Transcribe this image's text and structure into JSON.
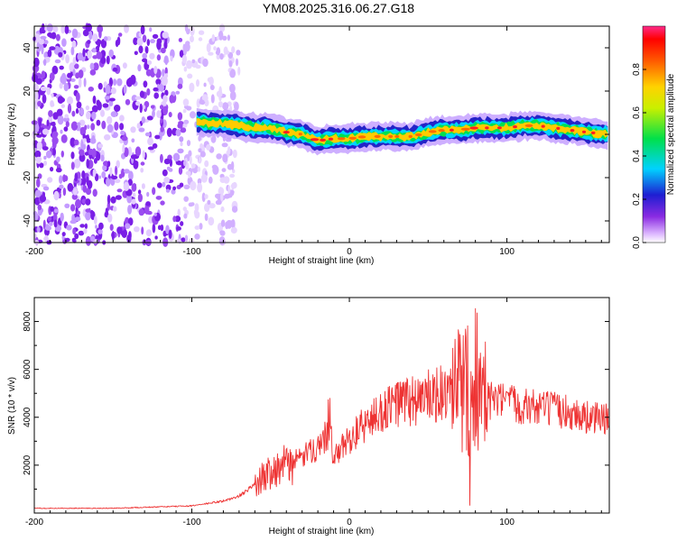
{
  "title": "YM08.2025.316.06.27.G18",
  "chart_data": [
    {
      "type": "heatmap",
      "xlabel": "Height of straight line (km)",
      "ylabel": "Frequency (Hz)",
      "xlim": [
        -200,
        165
      ],
      "ylim": [
        -50,
        50
      ],
      "xticks": [
        -200,
        -100,
        0,
        100
      ],
      "yticks": [
        -40,
        -20,
        0,
        20,
        40
      ],
      "colorbar": {
        "label": "Normalized spectral amplitude",
        "range": [
          0,
          1
        ],
        "ticks": [
          "0.0",
          "0.2",
          "0.4",
          "0.6",
          "0.8"
        ]
      },
      "ridge": {
        "x": [
          -97,
          -90,
          -80,
          -70,
          -60,
          -50,
          -40,
          -30,
          -20,
          -10,
          0,
          10,
          20,
          30,
          40,
          50,
          60,
          70,
          80,
          90,
          100,
          110,
          120,
          130,
          140,
          150,
          165
        ],
        "freq": [
          6,
          5,
          5,
          4,
          3,
          3,
          1,
          0,
          -3,
          -2,
          -2,
          -1,
          -1,
          -1,
          -1,
          1,
          2,
          2,
          3,
          3,
          3,
          4,
          4,
          3,
          2,
          1,
          0
        ]
      },
      "noise_region": [
        -200,
        -70
      ]
    },
    {
      "type": "line",
      "xlabel": "Height of straight line (km)",
      "ylabel": "SNR (10 * v/v)",
      "xlim": [
        -200,
        165
      ],
      "ylim": [
        0,
        9000
      ],
      "xticks": [
        -200,
        -100,
        0,
        100
      ],
      "yticks": [
        2000,
        4000,
        6000,
        8000
      ],
      "series": [
        {
          "name": "SNR",
          "color": "#ee3333",
          "x": [
            -200,
            -150,
            -100,
            -80,
            -70,
            -60,
            -50,
            -40,
            -30,
            -20,
            -12,
            -10,
            -5,
            0,
            10,
            20,
            30,
            40,
            50,
            55,
            60,
            65,
            70,
            75,
            78,
            80,
            82,
            85,
            90,
            100,
            110,
            120,
            130,
            140,
            150,
            165
          ],
          "y": [
            200,
            200,
            300,
            500,
            700,
            1200,
            1800,
            2000,
            2300,
            2800,
            3400,
            2200,
            2700,
            3100,
            3700,
            4200,
            4600,
            4700,
            4800,
            4900,
            5000,
            4800,
            5100,
            5200,
            5000,
            4700,
            4500,
            4600,
            4700,
            4600,
            4500,
            4400,
            4300,
            4200,
            4000,
            3900
          ]
        }
      ]
    }
  ]
}
